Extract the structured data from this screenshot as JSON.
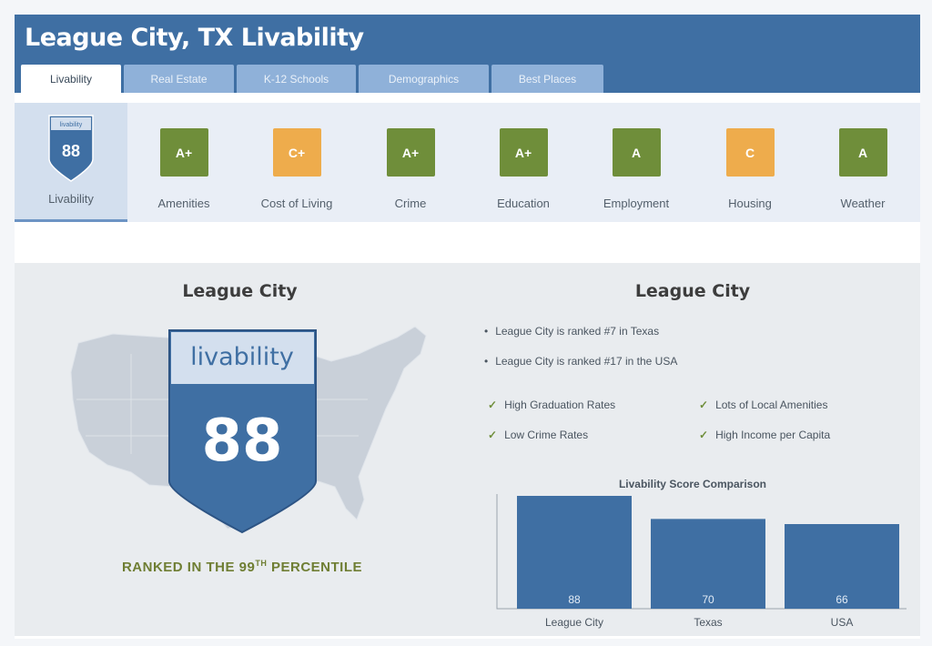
{
  "page_title": "League City, TX Livability",
  "tabs": [
    {
      "label": "Livability",
      "active": true
    },
    {
      "label": "Real Estate",
      "active": false
    },
    {
      "label": "K-12 Schools",
      "active": false
    },
    {
      "label": "Demographics",
      "active": false
    },
    {
      "label": "Best Places",
      "active": false
    }
  ],
  "grades": {
    "livability": {
      "shield_label": "livability",
      "score": "88",
      "label": "Livability"
    },
    "items": [
      {
        "grade": "A+",
        "label": "Amenities",
        "color": "#6f8e3a"
      },
      {
        "grade": "C+",
        "label": "Cost of Living",
        "color": "#eeac4c"
      },
      {
        "grade": "A+",
        "label": "Crime",
        "color": "#6f8e3a"
      },
      {
        "grade": "A+",
        "label": "Education",
        "color": "#6f8e3a"
      },
      {
        "grade": "A",
        "label": "Employment",
        "color": "#6f8e3a"
      },
      {
        "grade": "C",
        "label": "Housing",
        "color": "#eeac4c"
      },
      {
        "grade": "A",
        "label": "Weather",
        "color": "#6f8e3a"
      }
    ]
  },
  "left": {
    "city": "League City",
    "shield_label": "livability",
    "score": "88",
    "rank_prefix": "RANKED IN THE 99",
    "rank_sup": "TH",
    "rank_suffix": " PERCENTILE"
  },
  "right": {
    "city": "League City",
    "bullets": [
      "League City is ranked #7 in Texas",
      "League City is ranked #17 in the USA"
    ],
    "highlights": [
      "High Graduation Rates",
      "Lots of Local Amenities",
      "Low Crime Rates",
      "High Income per Capita"
    ]
  },
  "chart_data": {
    "type": "bar",
    "title": "Livability Score Comparison",
    "categories": [
      "League City",
      "Texas",
      "USA"
    ],
    "values": [
      88,
      70,
      66
    ],
    "ylim": [
      0,
      88
    ],
    "grid": false,
    "bar_color": "#3f6fa3"
  },
  "colors": {
    "brand_blue": "#3f6fa3",
    "tab_blue": "#8fb1d9",
    "grade_green": "#6f8e3a",
    "grade_orange": "#eeac4c"
  }
}
